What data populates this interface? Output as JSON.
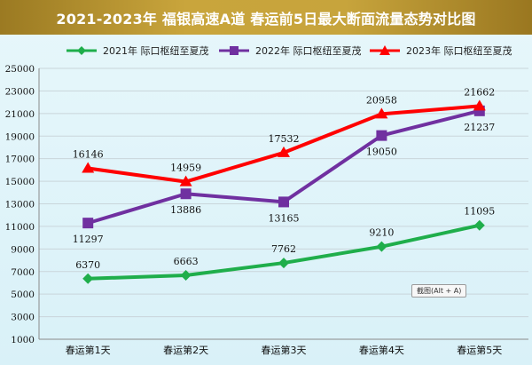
{
  "title": "2021-2023年  福银高速A道  春运前5日最大断面流量态势对比图",
  "tooltip": "截图(Alt + A)",
  "chart_data": {
    "type": "line",
    "categories": [
      "春运第1天",
      "春运第2天",
      "春运第3天",
      "春运第4天",
      "春运第5天"
    ],
    "ylim": [
      1000,
      25000
    ],
    "yticks": [
      1000,
      3000,
      5000,
      7000,
      9000,
      11000,
      13000,
      15000,
      17000,
      19000,
      21000,
      23000,
      25000
    ],
    "grid": true,
    "legend_position": "top",
    "series": [
      {
        "name": "2021年  际口枢纽至夏茂",
        "color": "#1fae4b",
        "marker": "diamond",
        "values": [
          6370,
          6663,
          7762,
          9210,
          11095
        ]
      },
      {
        "name": "2022年  际口枢纽至夏茂",
        "color": "#7030a0",
        "marker": "square",
        "values": [
          11297,
          13886,
          13165,
          19050,
          21237
        ]
      },
      {
        "name": "2023年  际口枢纽至夏茂",
        "color": "#ff0000",
        "marker": "triangle",
        "values": [
          16146,
          14959,
          17532,
          20958,
          21662
        ]
      }
    ]
  }
}
